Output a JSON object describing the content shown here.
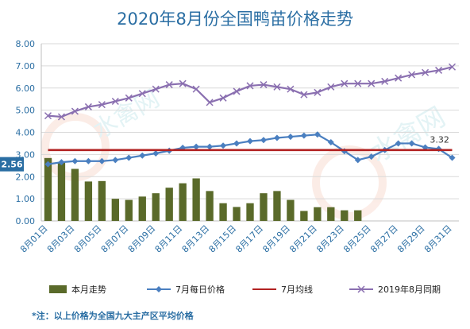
{
  "chart_data": {
    "type": "bar+line",
    "title": "2020年8月份全国鸭苗价格走势",
    "ylim": [
      0,
      8
    ],
    "yticks": [
      "0.00",
      "1.00",
      "2.00",
      "3.00",
      "4.00",
      "5.00",
      "6.00",
      "7.00",
      "8.00"
    ],
    "categories": [
      "8月01日",
      "8月02日",
      "8月03日",
      "8月04日",
      "8月05日",
      "8月06日",
      "8月07日",
      "8月08日",
      "8月09日",
      "8月10日",
      "8月11日",
      "8月12日",
      "8月13日",
      "8月14日",
      "8月15日",
      "8月16日",
      "8月17日",
      "8月18日",
      "8月19日",
      "8月20日",
      "8月21日",
      "8月22日",
      "8月23日",
      "8月24日",
      "8月25日",
      "8月26日",
      "8月27日",
      "8月28日",
      "8月29日",
      "8月30日",
      "8月31日"
    ],
    "xtick_labels": [
      "8月01日",
      "",
      "8月03日",
      "",
      "8月05日",
      "",
      "8月07日",
      "",
      "8月09日",
      "",
      "8月11日",
      "",
      "8月13日",
      "",
      "8月15日",
      "",
      "8月17日",
      "",
      "8月19日",
      "",
      "8月21日",
      "",
      "8月23日",
      "",
      "8月25日",
      "",
      "8月27日",
      "",
      "8月29日",
      "",
      "8月31日"
    ],
    "series": [
      {
        "name": "本月走势",
        "type": "bar",
        "color": "#5a6a2a",
        "values": [
          2.84,
          2.65,
          2.35,
          1.78,
          1.8,
          1.0,
          0.95,
          1.1,
          1.25,
          1.5,
          1.7,
          1.92,
          1.35,
          0.8,
          0.63,
          0.8,
          1.25,
          1.35,
          0.95,
          0.45,
          0.62,
          0.62,
          0.48,
          0.48,
          null,
          null,
          null,
          null,
          null,
          null,
          null
        ]
      },
      {
        "name": "7月每日价格",
        "type": "line",
        "color": "#4a7fc0",
        "marker": "diamond",
        "values": [
          2.56,
          2.65,
          2.7,
          2.7,
          2.7,
          2.75,
          2.85,
          2.95,
          3.05,
          3.17,
          3.3,
          3.35,
          3.35,
          3.4,
          3.5,
          3.6,
          3.65,
          3.75,
          3.8,
          3.85,
          3.9,
          3.55,
          3.15,
          2.75,
          2.9,
          3.2,
          3.5,
          3.5,
          3.32,
          3.25,
          2.85
        ]
      },
      {
        "name": "7月均线",
        "type": "line",
        "color": "#b22222",
        "values": [
          3.2,
          3.2,
          3.2,
          3.2,
          3.2,
          3.2,
          3.2,
          3.2,
          3.2,
          3.2,
          3.2,
          3.2,
          3.2,
          3.2,
          3.2,
          3.2,
          3.2,
          3.2,
          3.2,
          3.2,
          3.2,
          3.2,
          3.2,
          3.2,
          3.2,
          3.2,
          3.2,
          3.2,
          3.2,
          3.2,
          3.2
        ]
      },
      {
        "name": "2019年8月同期",
        "type": "line",
        "color": "#8a6fb0",
        "marker": "x",
        "values": [
          4.75,
          4.7,
          4.95,
          5.15,
          5.25,
          5.4,
          5.55,
          5.75,
          5.95,
          6.15,
          6.2,
          5.95,
          5.35,
          5.55,
          5.85,
          6.1,
          6.15,
          6.05,
          5.95,
          5.7,
          5.8,
          6.05,
          6.2,
          6.2,
          6.2,
          6.3,
          6.45,
          6.6,
          6.7,
          6.8,
          6.95
        ]
      }
    ],
    "annotations": [
      {
        "text": "2.56",
        "series": "7月每日价格",
        "index": 0
      },
      {
        "text": "3.32",
        "series": "7月每日价格",
        "index": 28
      }
    ],
    "legend_position": "bottom",
    "grid": true
  },
  "footnote": "*注：以上价格为全国九大主产区平均价格",
  "watermark": "水禽网"
}
